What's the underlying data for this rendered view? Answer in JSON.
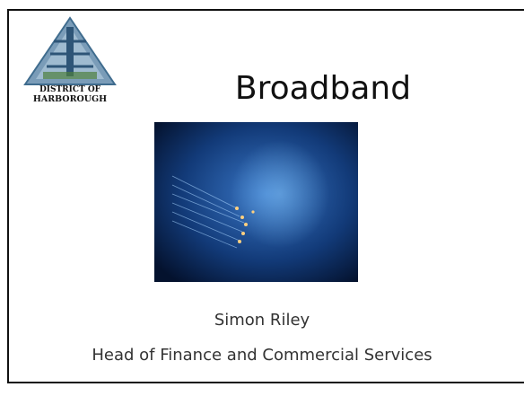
{
  "logo": {
    "line1": "DISTRICT OF",
    "line2": "HARBOROUGH"
  },
  "slide": {
    "title": "Broadband",
    "presenter": "Simon Riley",
    "role": "Head of Finance and Commercial Services"
  }
}
